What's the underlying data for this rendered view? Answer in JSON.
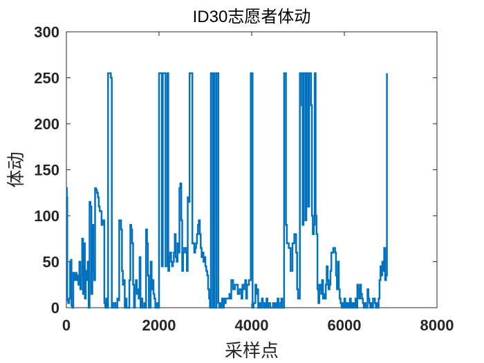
{
  "chart_data": {
    "type": "line",
    "title": "ID30志愿者体动",
    "xlabel": "采样点",
    "ylabel": "体动",
    "xlim": [
      0,
      8000
    ],
    "ylim": [
      0,
      300
    ],
    "xticks": [
      "0",
      "2000",
      "4000",
      "6000",
      "8000"
    ],
    "yticks": [
      "0",
      "50",
      "100",
      "150",
      "200",
      "250",
      "300"
    ],
    "grid": false,
    "line_color": "#0072bd",
    "series": [
      {
        "x": [
          0,
          10,
          20,
          40,
          60,
          80,
          100,
          110,
          130,
          150,
          160,
          180,
          200,
          220,
          240,
          260,
          280,
          300,
          320,
          340,
          360,
          380,
          400,
          420,
          440,
          460,
          480,
          500,
          520,
          540,
          560,
          580,
          600,
          620,
          640,
          660,
          680,
          700,
          720,
          740,
          760,
          780,
          800,
          820,
          840,
          860,
          880,
          900,
          940,
          960,
          980,
          1020,
          1060,
          1080,
          1100,
          1120,
          1140,
          1160,
          1180,
          1200,
          1220,
          1240,
          1260,
          1280,
          1300,
          1320,
          1340,
          1360,
          1380,
          1400,
          1420,
          1440,
          1460,
          1480,
          1500,
          1520,
          1540,
          1560,
          1580,
          1600,
          1620,
          1640,
          1660,
          1680,
          1700,
          1720,
          1740,
          1760,
          1780,
          1800,
          1820,
          1840,
          1860,
          1880,
          1900,
          1920,
          1940,
          1960,
          1980,
          2000,
          2020,
          2060,
          2080,
          2100,
          2140,
          2160,
          2180,
          2200,
          2220,
          2240,
          2260,
          2280,
          2300,
          2320,
          2340,
          2360,
          2380,
          2400,
          2420,
          2440,
          2460,
          2480,
          2500,
          2520,
          2540,
          2560,
          2580,
          2600,
          2620,
          2640,
          2660,
          2700,
          2720,
          2760,
          2780,
          2800,
          2820,
          2840,
          2860,
          2880,
          2900,
          2920,
          2940,
          2960,
          2980,
          3000,
          3020,
          3040,
          3060,
          3080,
          3100,
          3120,
          3140,
          3160,
          3180,
          3200,
          3240,
          3280,
          3300,
          3320,
          3340,
          3360,
          3380,
          3400,
          3420,
          3440,
          3460,
          3480,
          3500,
          3520,
          3540,
          3560,
          3600,
          3640,
          3700,
          3740,
          3780,
          3800,
          3820,
          3840,
          3860,
          3880,
          3900,
          3940,
          3980,
          4000,
          4020,
          4040,
          4060,
          4080,
          4100,
          4120,
          4140,
          4160,
          4180,
          4220,
          4240,
          4260,
          4280,
          4300,
          4320,
          4340,
          4360,
          4400,
          4440,
          4460,
          4480,
          4500,
          4520,
          4540,
          4560,
          4580,
          4600,
          4620,
          4640,
          4660,
          4680,
          4700,
          4720,
          4740,
          4760,
          4800,
          4840,
          4880,
          4920,
          4960,
          4980,
          5000,
          5040,
          5060,
          5080,
          5100,
          5120,
          5140,
          5160,
          5180,
          5200,
          5220,
          5240,
          5260,
          5280,
          5300,
          5320,
          5340,
          5360,
          5380,
          5400,
          5420,
          5440,
          5460,
          5480,
          5500,
          5520,
          5540,
          5560,
          5580,
          5600,
          5620,
          5640,
          5660,
          5680,
          5700,
          5720,
          5740,
          5760,
          5780,
          5800,
          5820,
          5840,
          5860,
          5880,
          5900,
          5920,
          5940,
          5960,
          5980,
          6000,
          6020,
          6040,
          6060,
          6080,
          6100,
          6120,
          6140,
          6160,
          6180,
          6200,
          6220,
          6240,
          6260,
          6280,
          6300,
          6320,
          6340,
          6360,
          6380,
          6400,
          6420,
          6440,
          6460,
          6480,
          6500,
          6520,
          6540,
          6560,
          6580,
          6600,
          6620,
          6640,
          6660,
          6680,
          6700,
          6720,
          6740,
          6760,
          6780,
          6800,
          6820,
          6840,
          6860,
          6880,
          6900,
          6920
        ],
        "y": [
          130,
          120,
          8,
          5,
          10,
          50,
          52,
          2,
          0,
          38,
          35,
          30,
          38,
          30,
          35,
          25,
          50,
          20,
          35,
          75,
          15,
          70,
          10,
          40,
          30,
          50,
          0,
          115,
          110,
          15,
          90,
          40,
          30,
          130,
          128,
          125,
          120,
          110,
          105,
          105,
          90,
          95,
          95,
          5,
          0,
          10,
          0,
          255,
          255,
          250,
          0,
          5,
          0,
          0,
          10,
          8,
          95,
          95,
          85,
          40,
          25,
          30,
          0,
          10,
          0,
          0,
          0,
          30,
          90,
          85,
          70,
          25,
          0,
          20,
          30,
          15,
          20,
          10,
          55,
          0,
          10,
          0,
          0,
          5,
          0,
          85,
          70,
          35,
          0,
          0,
          50,
          20,
          30,
          15,
          10,
          0,
          0,
          5,
          0,
          255,
          255,
          45,
          255,
          255,
          45,
          45,
          255,
          40,
          55,
          60,
          50,
          45,
          50,
          60,
          80,
          55,
          50,
          70,
          60,
          130,
          135,
          95,
          40,
          60,
          65,
          65,
          60,
          40,
          120,
          115,
          255,
          255,
          70,
          60,
          65,
          70,
          80,
          90,
          95,
          80,
          65,
          55,
          60,
          50,
          55,
          45,
          40,
          35,
          20,
          10,
          0,
          255,
          255,
          0,
          255,
          0,
          255,
          5,
          0,
          5,
          0,
          10,
          0,
          10,
          5,
          10,
          10,
          10,
          10,
          15,
          10,
          30,
          20,
          25,
          15,
          20,
          10,
          25,
          20,
          25,
          30,
          10,
          25,
          30,
          255,
          255,
          0,
          5,
          5,
          25,
          15,
          20,
          0,
          5,
          0,
          10,
          5,
          0,
          5,
          0,
          10,
          0,
          5,
          0,
          0,
          5,
          0,
          0,
          5,
          0,
          10,
          0,
          0,
          5,
          10,
          0,
          0,
          255,
          255,
          90,
          70,
          65,
          40,
          70,
          80,
          60,
          20,
          10,
          255,
          255,
          220,
          90,
          255,
          255,
          95,
          255,
          255,
          110,
          255,
          255,
          220,
          100,
          80,
          90,
          255,
          100,
          80,
          20,
          5,
          25,
          20,
          15,
          30,
          10,
          15,
          10,
          25,
          45,
          30,
          20,
          25,
          40,
          60,
          60,
          65,
          65,
          60,
          35,
          20,
          50,
          20,
          10,
          5,
          0,
          5,
          0,
          10,
          0,
          5,
          0,
          5,
          0,
          10,
          0,
          5,
          0,
          5,
          0,
          10,
          0,
          25,
          20,
          10,
          25,
          15,
          10,
          5,
          0,
          5,
          0,
          0,
          20,
          10,
          5,
          0,
          5,
          0,
          10,
          10,
          5,
          0,
          5,
          0,
          10,
          30,
          45,
          35,
          50,
          40,
          65,
          30,
          35,
          255
        ]
      }
    ]
  }
}
